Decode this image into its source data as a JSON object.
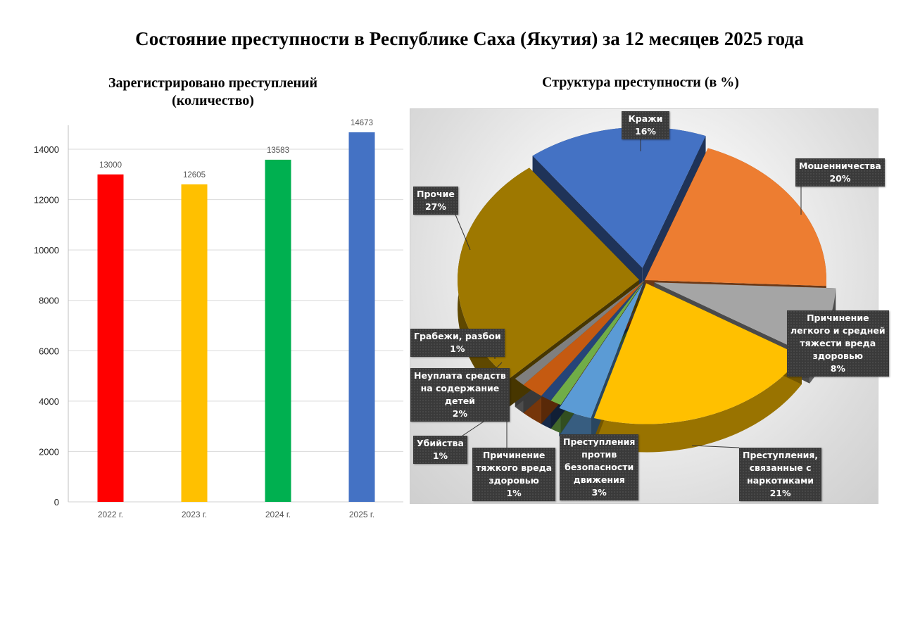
{
  "page": {
    "title": "Состояние преступности в Республике Саха (Якутия) за 12 месяцев 2025 года"
  },
  "chart_data": [
    {
      "type": "bar",
      "title": "Зарегистрировано преступлений (количество)",
      "title_lines": [
        "Зарегистрировано преступлений",
        "(количество)"
      ],
      "categories": [
        "2022 г.",
        "2023 г.",
        "2024 г.",
        "2025 г."
      ],
      "values": [
        13000,
        12605,
        13583,
        14673
      ],
      "colors": [
        "#ff0000",
        "#ffc000",
        "#00b050",
        "#4472c4"
      ],
      "xlabel": "",
      "ylabel": "",
      "ylim": [
        0,
        14000
      ],
      "yticks": [
        0,
        2000,
        4000,
        6000,
        8000,
        10000,
        12000,
        14000
      ],
      "grid": true,
      "data_labels": true,
      "legend": "none"
    },
    {
      "type": "pie",
      "title": "Структура преступности (в %)",
      "style": "3d-exploded",
      "slices": [
        {
          "label": "Кражи",
          "lines": [
            "Кражи"
          ],
          "value": 16,
          "pct": "16%",
          "color": "#4472c4"
        },
        {
          "label": "Мошенничества",
          "lines": [
            "Мошенничества"
          ],
          "value": 20,
          "pct": "20%",
          "color": "#ed7d31"
        },
        {
          "label": "Причинение легкого и средней тяжести вреда здоровью",
          "lines": [
            "Причинение",
            "легкого и средней",
            "тяжести вреда",
            "здоровью"
          ],
          "value": 8,
          "pct": "8%",
          "color": "#a5a5a5"
        },
        {
          "label": "Преступления, связанные с наркотиками",
          "lines": [
            "Преступления,",
            "связанные с",
            "наркотиками"
          ],
          "value": 21,
          "pct": "21%",
          "color": "#ffc000"
        },
        {
          "label": "Преступления против безопасности движения",
          "lines": [
            "Преступления",
            "против",
            "безопасности",
            "движения"
          ],
          "value": 3,
          "pct": "3%",
          "color": "#5b9bd5"
        },
        {
          "label": "Причинение тяжкого вреда здоровью",
          "lines": [
            "Причинение",
            "тяжкого вреда",
            "здоровью"
          ],
          "value": 1,
          "pct": "1%",
          "color": "#70ad47"
        },
        {
          "label": "Убийства",
          "lines": [
            "Убийства"
          ],
          "value": 1,
          "pct": "1%",
          "color": "#264478"
        },
        {
          "label": "Неуплата средств на содержание детей",
          "lines": [
            "Неуплата средств",
            "на содержание",
            "детей"
          ],
          "value": 2,
          "pct": "2%",
          "color": "#c55a11"
        },
        {
          "label": "Грабежи, разбои",
          "lines": [
            "Грабежи, разбои"
          ],
          "value": 1,
          "pct": "1%",
          "color": "#7f7f7f"
        },
        {
          "label": "Прочие",
          "lines": [
            "Прочие"
          ],
          "value": 27,
          "pct": "27%",
          "color": "#9e7800"
        }
      ],
      "legend": "data labels with leader lines"
    }
  ]
}
